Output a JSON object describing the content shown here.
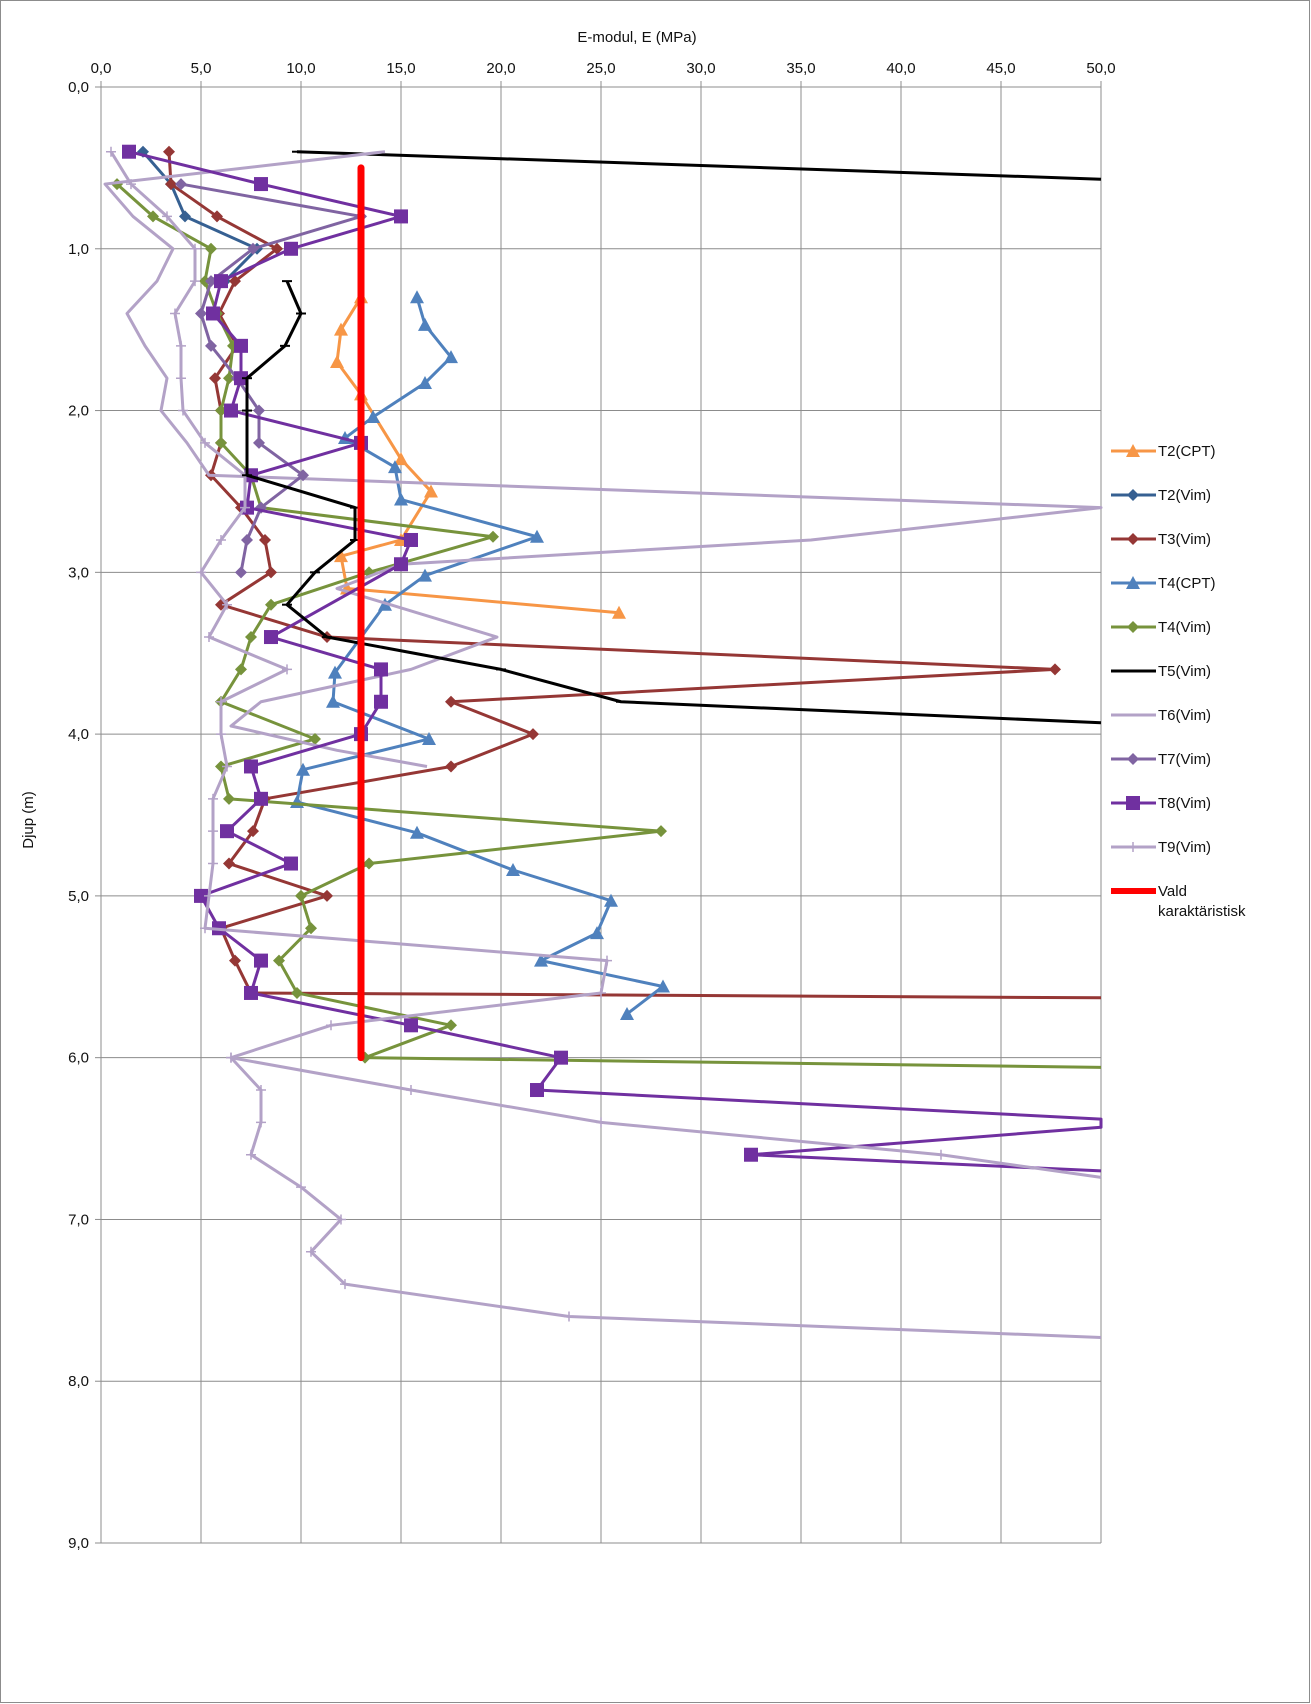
{
  "chart_data": {
    "type": "line",
    "xlabel": "E-modul, E (MPa)",
    "ylabel": "Djup (m)",
    "xlim": [
      0,
      50
    ],
    "ylim": [
      0,
      9
    ],
    "x_axis_position": "top",
    "y_axis_inverted": true,
    "grid": true,
    "legend_position": "right",
    "x_ticks": [
      "0,0",
      "5,0",
      "10,0",
      "15,0",
      "20,0",
      "25,0",
      "30,0",
      "35,0",
      "40,0",
      "45,0",
      "50,0"
    ],
    "y_ticks": [
      "0,0",
      "1,0",
      "2,0",
      "3,0",
      "4,0",
      "5,0",
      "6,0",
      "7,0",
      "8,0",
      "9,0"
    ],
    "series": [
      {
        "name": "T2(CPT)",
        "color": "#f79646",
        "marker": "triangle",
        "points": [
          [
            13.0,
            1.3
          ],
          [
            12.0,
            1.5
          ],
          [
            11.8,
            1.7
          ],
          [
            13.0,
            1.9
          ],
          [
            15.0,
            2.3
          ],
          [
            16.5,
            2.5
          ],
          [
            15.0,
            2.8
          ],
          [
            12.0,
            2.9
          ],
          [
            12.3,
            3.1
          ],
          [
            25.9,
            3.25
          ]
        ]
      },
      {
        "name": "T2(Vim)",
        "color": "#366092",
        "marker": "diamond",
        "points": [
          [
            2.1,
            0.4
          ],
          [
            3.5,
            0.6
          ],
          [
            4.2,
            0.8
          ],
          [
            7.8,
            1.0
          ],
          [
            6.2,
            1.2
          ]
        ]
      },
      {
        "name": "T3(Vim)",
        "color": "#953735",
        "marker": "diamond",
        "points": [
          [
            3.4,
            0.4
          ],
          [
            3.5,
            0.6
          ],
          [
            5.8,
            0.8
          ],
          [
            8.8,
            1.0
          ],
          [
            6.7,
            1.2
          ],
          [
            5.9,
            1.4
          ],
          [
            6.8,
            1.6
          ],
          [
            5.7,
            1.8
          ],
          [
            6.0,
            2.0
          ],
          [
            6.0,
            2.2
          ],
          [
            5.5,
            2.4
          ],
          [
            7.0,
            2.6
          ],
          [
            8.2,
            2.8
          ],
          [
            8.5,
            3.0
          ],
          [
            6.0,
            3.2
          ],
          [
            11.3,
            3.4
          ],
          [
            47.7,
            3.6
          ],
          [
            17.5,
            3.8
          ],
          [
            21.6,
            4.0
          ],
          [
            17.5,
            4.2
          ],
          [
            8.2,
            4.4
          ],
          [
            7.6,
            4.6
          ],
          [
            6.4,
            4.8
          ],
          [
            11.3,
            5.0
          ],
          [
            6.0,
            5.2
          ],
          [
            6.7,
            5.4
          ],
          [
            7.5,
            5.6
          ],
          [
            50.0,
            5.63
          ]
        ]
      },
      {
        "name": "T4(CPT)",
        "color": "#4f81bd",
        "marker": "triangle",
        "points": [
          [
            15.8,
            1.3
          ],
          [
            16.2,
            1.47
          ],
          [
            17.5,
            1.67
          ],
          [
            16.2,
            1.83
          ],
          [
            13.6,
            2.04
          ],
          [
            12.2,
            2.17
          ],
          [
            14.7,
            2.35
          ],
          [
            15.0,
            2.55
          ],
          [
            21.8,
            2.78
          ],
          [
            16.2,
            3.02
          ],
          [
            14.2,
            3.2
          ],
          [
            11.7,
            3.62
          ],
          [
            11.6,
            3.8
          ],
          [
            16.4,
            4.03
          ],
          [
            10.1,
            4.22
          ],
          [
            9.8,
            4.42
          ],
          [
            15.8,
            4.61
          ],
          [
            20.6,
            4.84
          ],
          [
            25.5,
            5.03
          ],
          [
            24.8,
            5.23
          ],
          [
            22.0,
            5.4
          ],
          [
            28.1,
            5.56
          ],
          [
            26.3,
            5.73
          ]
        ]
      },
      {
        "name": "T4(Vim)",
        "color": "#77933c",
        "marker": "diamond",
        "points": [
          [
            0.8,
            0.6
          ],
          [
            2.6,
            0.8
          ],
          [
            5.5,
            1.0
          ],
          [
            5.2,
            1.2
          ],
          [
            5.8,
            1.4
          ],
          [
            6.6,
            1.6
          ],
          [
            6.4,
            1.8
          ],
          [
            6.0,
            2.0
          ],
          [
            6.0,
            2.2
          ],
          [
            7.5,
            2.4
          ],
          [
            8.0,
            2.6
          ],
          [
            19.6,
            2.78
          ],
          [
            13.4,
            3.0
          ],
          [
            8.5,
            3.2
          ],
          [
            7.5,
            3.4
          ],
          [
            7.0,
            3.6
          ],
          [
            6.0,
            3.8
          ],
          [
            10.7,
            4.03
          ],
          [
            6.0,
            4.2
          ],
          [
            6.4,
            4.4
          ],
          [
            28.0,
            4.6
          ],
          [
            13.4,
            4.8
          ],
          [
            10.0,
            5.0
          ],
          [
            10.5,
            5.2
          ],
          [
            8.9,
            5.4
          ],
          [
            9.8,
            5.6
          ],
          [
            17.5,
            5.8
          ],
          [
            13.2,
            6.0
          ],
          [
            50.0,
            6.06
          ]
        ]
      },
      {
        "name": "T5(Vim)",
        "color": "#000000",
        "marker": "dash",
        "points": [
          [
            9.8,
            0.4
          ],
          [
            50.0,
            0.57
          ]
        ]
      },
      {
        "name": "T6(Vim)",
        "color": "#b3a2c7",
        "marker": "none",
        "points": [
          [
            14.2,
            0.4
          ],
          [
            0.2,
            0.6
          ],
          [
            1.6,
            0.8
          ],
          [
            3.6,
            1.0
          ],
          [
            2.8,
            1.2
          ],
          [
            1.3,
            1.4
          ],
          [
            2.2,
            1.6
          ],
          [
            3.3,
            1.8
          ],
          [
            3.0,
            2.0
          ],
          [
            4.3,
            2.2
          ],
          [
            5.4,
            2.4
          ],
          [
            50.0,
            2.6
          ],
          [
            35.5,
            2.8
          ],
          [
            15.0,
            2.95
          ],
          [
            11.8,
            3.1
          ],
          [
            19.8,
            3.4
          ],
          [
            15.5,
            3.6
          ],
          [
            8.0,
            3.8
          ],
          [
            6.5,
            3.95
          ],
          [
            11.8,
            4.1
          ],
          [
            16.3,
            4.2
          ]
        ]
      },
      {
        "name": "T7(Vim)",
        "color": "#8064a2",
        "marker": "diamond",
        "points": [
          [
            4.0,
            0.6
          ],
          [
            13.0,
            0.8
          ],
          [
            7.6,
            1.0
          ],
          [
            5.5,
            1.2
          ],
          [
            5.0,
            1.4
          ],
          [
            5.5,
            1.6
          ],
          [
            6.8,
            1.8
          ],
          [
            7.9,
            2.0
          ],
          [
            7.9,
            2.2
          ],
          [
            10.1,
            2.4
          ],
          [
            8.0,
            2.6
          ],
          [
            7.3,
            2.8
          ],
          [
            7.0,
            3.0
          ]
        ]
      },
      {
        "name": "T8(Vim)",
        "color": "#7030a0",
        "marker": "square",
        "points": [
          [
            1.4,
            0.4
          ],
          [
            8.0,
            0.6
          ],
          [
            15.0,
            0.8
          ],
          [
            9.5,
            1.0
          ],
          [
            6.0,
            1.2
          ],
          [
            5.6,
            1.4
          ],
          [
            7.0,
            1.6
          ],
          [
            7.0,
            1.8
          ],
          [
            6.5,
            2.0
          ],
          [
            13.0,
            2.2
          ],
          [
            7.5,
            2.4
          ],
          [
            7.3,
            2.6
          ],
          [
            15.5,
            2.8
          ],
          [
            15.0,
            2.95
          ],
          [
            8.5,
            3.4
          ],
          [
            14.0,
            3.6
          ],
          [
            14.0,
            3.8
          ],
          [
            13.0,
            4.0
          ],
          [
            7.5,
            4.2
          ],
          [
            8.0,
            4.4
          ],
          [
            6.3,
            4.6
          ],
          [
            9.5,
            4.8
          ],
          [
            5.0,
            5.0
          ],
          [
            5.9,
            5.2
          ],
          [
            8.0,
            5.4
          ],
          [
            7.5,
            5.6
          ],
          [
            15.5,
            5.8
          ],
          [
            23.0,
            6.0
          ],
          [
            21.8,
            6.2
          ],
          [
            50.0,
            6.38
          ],
          [
            50.0,
            6.43
          ],
          [
            32.5,
            6.6
          ],
          [
            50.0,
            6.7
          ]
        ]
      },
      {
        "name": "T9(Vim)",
        "color": "#b3a2c7",
        "marker": "plus",
        "points": [
          [
            0.5,
            0.4
          ],
          [
            1.5,
            0.6
          ],
          [
            3.3,
            0.8
          ],
          [
            4.7,
            1.0
          ],
          [
            4.7,
            1.2
          ],
          [
            3.7,
            1.4
          ],
          [
            4.0,
            1.6
          ],
          [
            4.0,
            1.8
          ],
          [
            4.1,
            2.0
          ],
          [
            5.2,
            2.2
          ],
          [
            7.2,
            2.4
          ],
          [
            7.2,
            2.6
          ],
          [
            6.0,
            2.8
          ],
          [
            5.0,
            3.0
          ],
          [
            6.3,
            3.2
          ],
          [
            5.4,
            3.4
          ],
          [
            9.3,
            3.6
          ],
          [
            6.0,
            3.8
          ],
          [
            6.0,
            4.0
          ],
          [
            6.3,
            4.2
          ],
          [
            5.6,
            4.4
          ],
          [
            5.6,
            4.6
          ],
          [
            5.6,
            4.8
          ],
          [
            5.4,
            5.0
          ],
          [
            5.2,
            5.2
          ],
          [
            25.3,
            5.4
          ],
          [
            25.0,
            5.6
          ],
          [
            11.5,
            5.8
          ],
          [
            6.5,
            6.0
          ],
          [
            15.5,
            6.2
          ],
          [
            25.0,
            6.4
          ],
          [
            42.0,
            6.6
          ],
          [
            50.0,
            6.74
          ]
        ]
      },
      {
        "name": "T9(Vim)",
        "color": "#b3a2c7",
        "marker": "plus",
        "points": [
          [
            6.5,
            6.0
          ],
          [
            8.0,
            6.2
          ],
          [
            8.0,
            6.4
          ],
          [
            7.5,
            6.6
          ],
          [
            10.0,
            6.8
          ],
          [
            12.0,
            7.0
          ],
          [
            10.5,
            7.2
          ],
          [
            12.2,
            7.4
          ],
          [
            23.4,
            7.6
          ],
          [
            50.0,
            7.73
          ]
        ]
      },
      {
        "name": "T5(Vim)",
        "color": "#000000",
        "marker": "dash",
        "points": [
          [
            9.3,
            1.2
          ],
          [
            10.0,
            1.4
          ],
          [
            9.2,
            1.6
          ],
          [
            7.3,
            1.8
          ],
          [
            7.3,
            2.0
          ],
          [
            7.3,
            2.4
          ],
          [
            12.7,
            2.6
          ],
          [
            12.7,
            2.8
          ],
          [
            10.7,
            3.0
          ],
          [
            9.3,
            3.2
          ],
          [
            11.3,
            3.4
          ],
          [
            20.0,
            3.6
          ],
          [
            26.0,
            3.8
          ],
          [
            50.0,
            3.93
          ]
        ]
      },
      {
        "name": "Vald karaktäristisk",
        "color": "#ff0000",
        "marker": "none",
        "points": [
          [
            13.0,
            0.5
          ],
          [
            13.0,
            6.0
          ]
        ]
      }
    ],
    "legend": [
      {
        "label": "T2(CPT)",
        "color": "#f79646",
        "marker": "triangle"
      },
      {
        "label": "T2(Vim)",
        "color": "#366092",
        "marker": "diamond"
      },
      {
        "label": "T3(Vim)",
        "color": "#953735",
        "marker": "diamond"
      },
      {
        "label": "T4(CPT)",
        "color": "#4f81bd",
        "marker": "triangle"
      },
      {
        "label": "T4(Vim)",
        "color": "#77933c",
        "marker": "diamond"
      },
      {
        "label": "T5(Vim)",
        "color": "#000000",
        "marker": "none"
      },
      {
        "label": "T6(Vim)",
        "color": "#b3a2c7",
        "marker": "none"
      },
      {
        "label": "T7(Vim)",
        "color": "#8064a2",
        "marker": "diamond"
      },
      {
        "label": "T8(Vim)",
        "color": "#7030a0",
        "marker": "square"
      },
      {
        "label": "T9(Vim)",
        "color": "#b3a2c7",
        "marker": "plus"
      },
      {
        "label": "Vald karaktäristisk",
        "color": "#ff0000",
        "marker": "none"
      }
    ]
  }
}
